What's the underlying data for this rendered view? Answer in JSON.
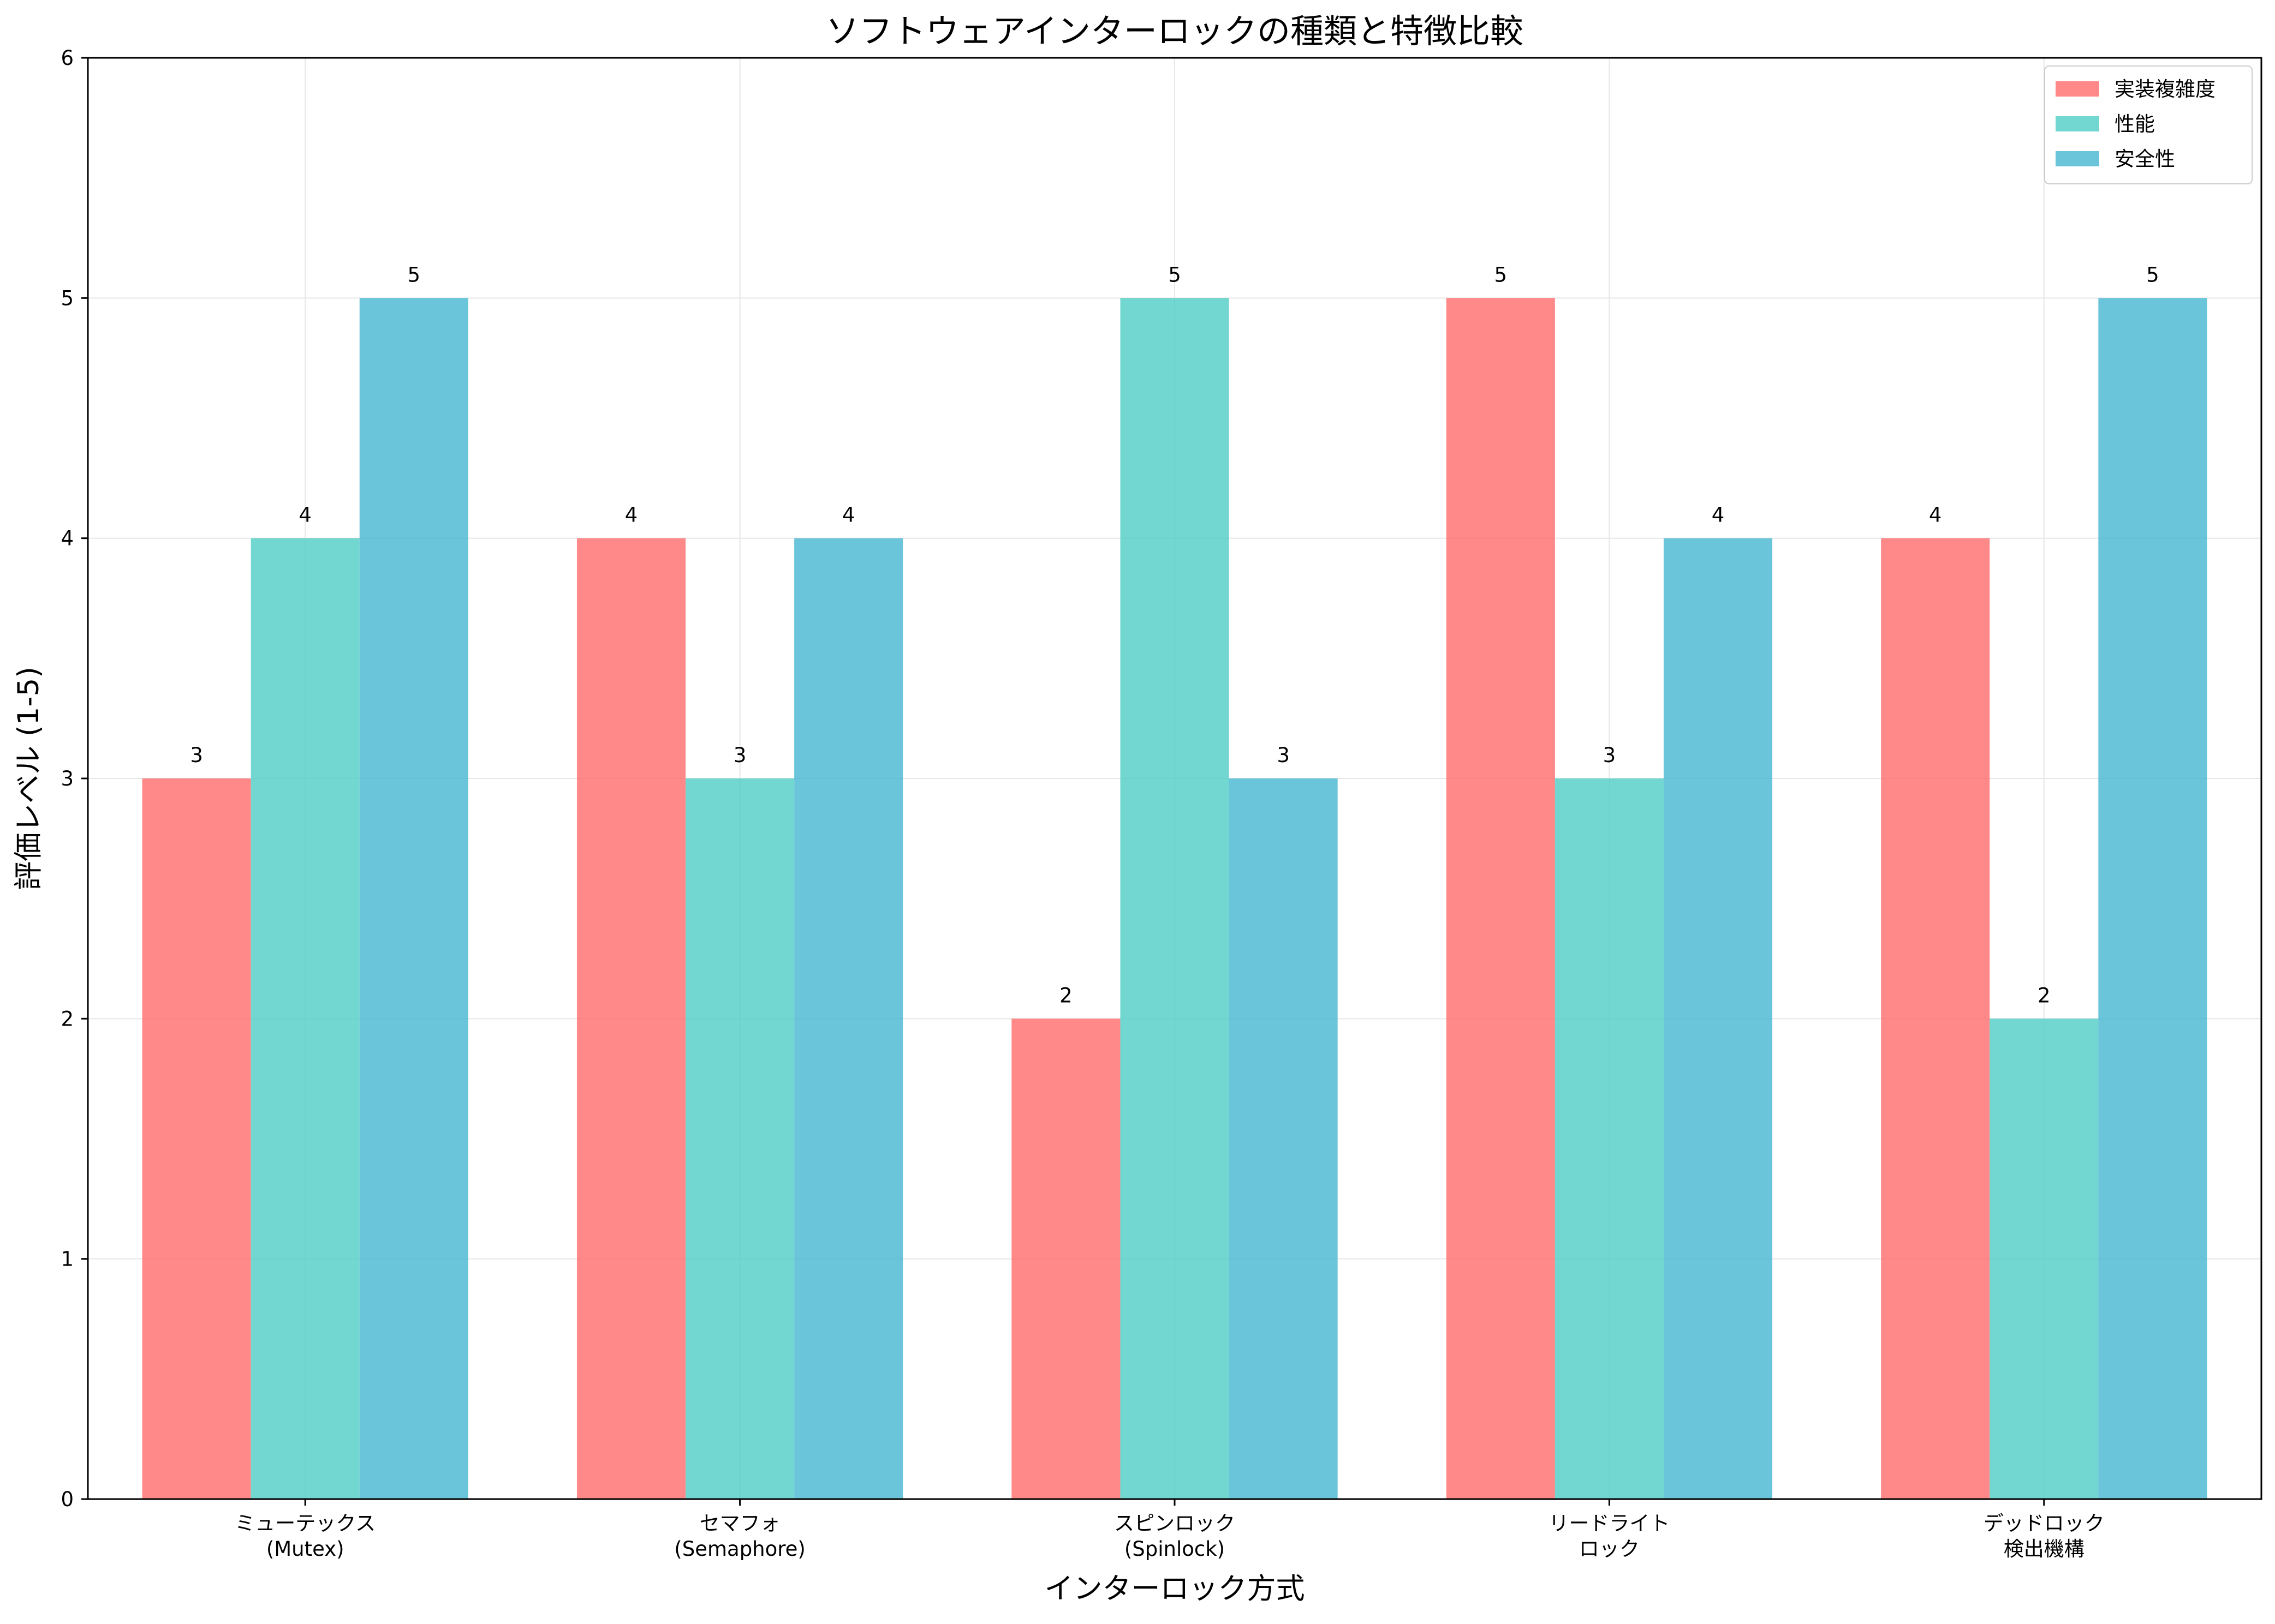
{
  "chart_data": {
    "type": "bar",
    "title": "ソフトウェアインターロックの種類と特徴比較",
    "xlabel": "インターロック方式",
    "ylabel": "評価レベル (1-5)",
    "ylim": [
      0,
      6
    ],
    "yticks": [
      0,
      1,
      2,
      3,
      4,
      5,
      6
    ],
    "grid": true,
    "legend_position": "top-right",
    "categories": [
      [
        "ミューテックス",
        "(Mutex)"
      ],
      [
        "セマフォ",
        "(Semaphore)"
      ],
      [
        "スピンロック",
        "(Spinlock)"
      ],
      [
        "リードライト",
        "ロック"
      ],
      [
        "デッドロック",
        "検出機構"
      ]
    ],
    "series": [
      {
        "name": "実装複雑度",
        "color": "#ff6b6b",
        "values": [
          3,
          4,
          2,
          5,
          4
        ]
      },
      {
        "name": "性能",
        "color": "#4ecdc4",
        "values": [
          4,
          3,
          5,
          3,
          2
        ]
      },
      {
        "name": "安全性",
        "color": "#45b7d1",
        "values": [
          5,
          4,
          3,
          4,
          5
        ]
      }
    ]
  }
}
